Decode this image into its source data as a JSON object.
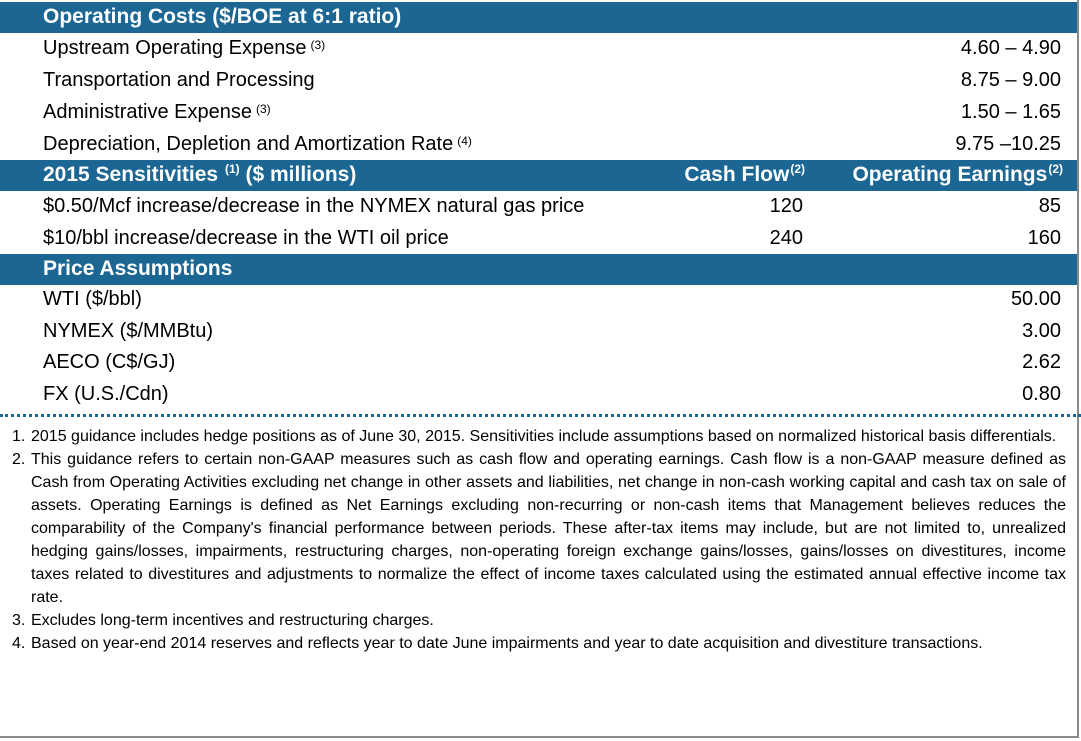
{
  "operating_costs": {
    "header": "Operating Costs ($/BOE at 6:1 ratio)",
    "rows": [
      {
        "label": "Upstream Operating Expense",
        "note": "(3)",
        "value": "4.60 – 4.90"
      },
      {
        "label": "Transportation and Processing",
        "note": "",
        "value": "8.75 – 9.00"
      },
      {
        "label": "Administrative Expense",
        "note": "(3)",
        "value": "1.50 – 1.65"
      },
      {
        "label": "Depreciation, Depletion and Amortization Rate",
        "note": "(4)",
        "value": "9.75 –10.25"
      }
    ]
  },
  "sensitivities": {
    "header": "2015 Sensitivities",
    "header_note": "(1)",
    "header_suffix": "($ millions)",
    "col1": "Cash Flow",
    "col1_note": "(2)",
    "col2": "Operating Earnings",
    "col2_note": "(2)",
    "rows": [
      {
        "label": "$0.50/Mcf increase/decrease in the NYMEX natural gas price",
        "cash_flow": "120",
        "operating_earnings": "85"
      },
      {
        "label": "$10/bbl increase/decrease in the WTI oil price",
        "cash_flow": "240",
        "operating_earnings": "160"
      }
    ]
  },
  "price_assumptions": {
    "header": "Price Assumptions",
    "rows": [
      {
        "label": "WTI ($/bbl)",
        "value": "50.00"
      },
      {
        "label": "NYMEX ($/MMBtu)",
        "value": "3.00"
      },
      {
        "label": "AECO (C$/GJ)",
        "value": "2.62"
      },
      {
        "label": "FX (U.S./Cdn)",
        "value": "0.80"
      }
    ]
  },
  "footnotes": [
    {
      "num": "1.",
      "text": "2015 guidance includes hedge positions as of June 30, 2015. Sensitivities include assumptions based on normalized historical basis differentials."
    },
    {
      "num": "2.",
      "text": "This guidance refers to certain non-GAAP measures such as cash flow and operating earnings. Cash flow is a non-GAAP measure defined as Cash from Operating Activities excluding net change in other assets and liabilities, net change in non-cash working capital and cash tax on sale of assets. Operating Earnings is defined as Net Earnings excluding non-recurring or non-cash items that Management believes reduces the comparability of the Company's financial performance between periods. These after-tax items may include, but are not limited to, unrealized hedging gains/losses, impairments, restructuring charges, non-operating foreign exchange gains/losses, gains/losses on divestitures, income taxes related to divestitures and adjustments to normalize the effect of income taxes calculated using the estimated annual effective income tax rate."
    },
    {
      "num": "3.",
      "text": "Excludes long-term incentives and restructuring charges."
    },
    {
      "num": "4.",
      "text": "Based on year-end 2014 reserves and reflects year to date June impairments and year to date acquisition and divestiture transactions."
    }
  ]
}
